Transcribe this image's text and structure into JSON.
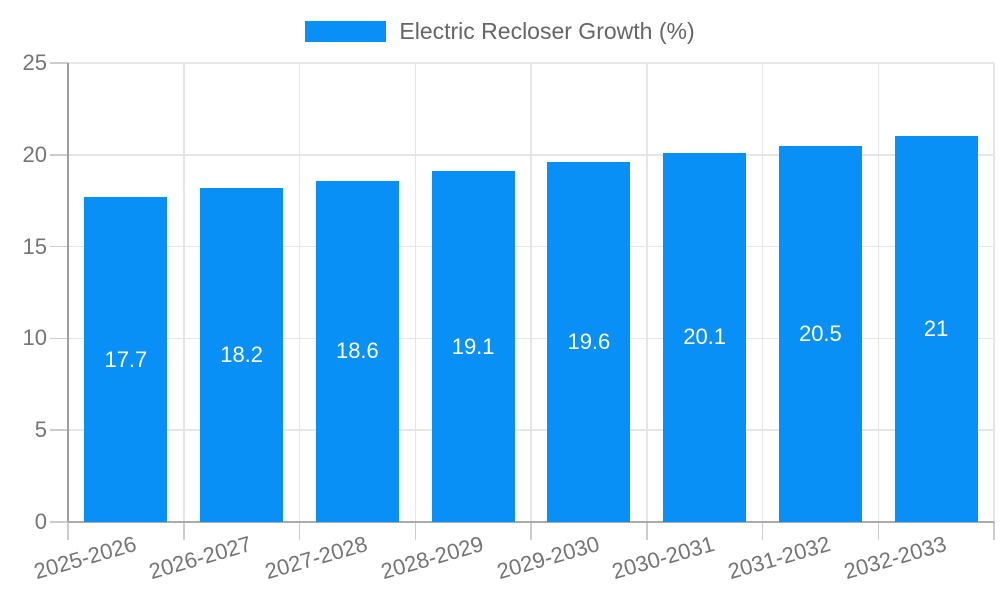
{
  "legend": {
    "label": "Electric Recloser Growth (%)"
  },
  "colors": {
    "bar": "#0890f6",
    "bar_label": "#ffffff",
    "grid": "#e6e6e6",
    "tick": "#cccccc",
    "axis": "#9e9e9e",
    "baseline": "#ababab",
    "tick_label": "#757575",
    "legend_text": "#666666",
    "background": "#ffffff"
  },
  "chart_data": {
    "type": "bar",
    "title": "",
    "categories": [
      "2025-2026",
      "2026-2027",
      "2027-2028",
      "2028-2029",
      "2029-2030",
      "2030-2031",
      "2031-2032",
      "2032-2033"
    ],
    "series": [
      {
        "name": "Electric Recloser Growth (%)",
        "values": [
          17.7,
          18.2,
          18.6,
          19.1,
          19.6,
          20.1,
          20.5,
          21
        ]
      }
    ],
    "value_labels": [
      "17.7",
      "18.2",
      "18.6",
      "19.1",
      "19.6",
      "20.1",
      "20.5",
      "21"
    ],
    "xlabel": "",
    "ylabel": "",
    "ylim": [
      0,
      25
    ],
    "yticks": [
      0,
      5,
      10,
      15,
      20,
      25
    ],
    "grid": true,
    "legend_position": "top-center",
    "x_tick_rotation_deg": -16,
    "bar_labels_inside": true
  }
}
